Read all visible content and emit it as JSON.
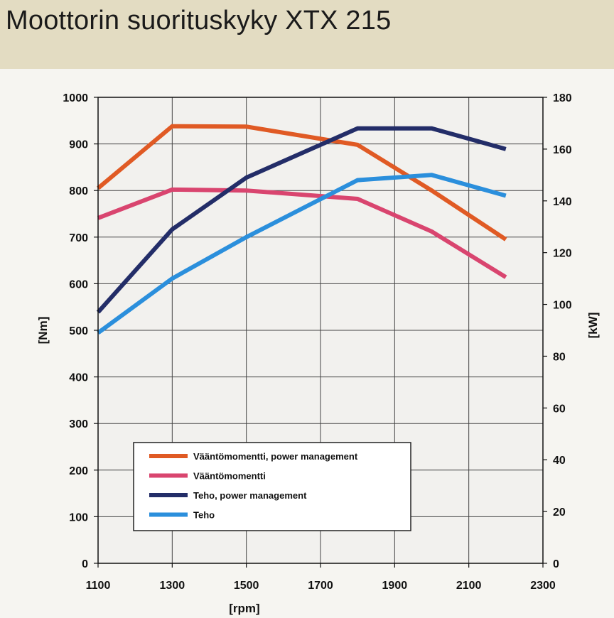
{
  "title": "Moottorin suorituskyky XTX 215",
  "chart_data": {
    "type": "line",
    "title": "Moottorin suorituskyky XTX 215",
    "xlabel": "[rpm]",
    "ylabel": "[Nm]",
    "y2label": "[kW]",
    "xlim": [
      1100,
      2300
    ],
    "ylim": [
      0,
      1000
    ],
    "y2lim": [
      0,
      180
    ],
    "x_ticks": [
      "1100",
      "1300",
      "1500",
      "1700",
      "1900",
      "2100",
      "2300"
    ],
    "y_ticks": [
      "0",
      "100",
      "200",
      "300",
      "400",
      "500",
      "600",
      "700",
      "800",
      "900",
      "1000"
    ],
    "y2_ticks": [
      "0",
      "20",
      "40",
      "60",
      "80",
      "100",
      "120",
      "140",
      "160",
      "180"
    ],
    "grid": true,
    "legend_position": "bottom-left",
    "series": [
      {
        "name": "Vääntömomentti, power management",
        "axis": "left",
        "color": "#e05a24",
        "x": [
          1100,
          1300,
          1500,
          1800,
          2000,
          2200
        ],
        "y": [
          805,
          938,
          937,
          898,
          800,
          695
        ]
      },
      {
        "name": "Vääntömomentti",
        "axis": "left",
        "color": "#d9456f",
        "x": [
          1100,
          1300,
          1500,
          1800,
          2000,
          2200
        ],
        "y": [
          741,
          802,
          800,
          782,
          712,
          614
        ]
      },
      {
        "name": "Teho, power management",
        "axis": "right",
        "color": "#232d68",
        "x": [
          1100,
          1300,
          1500,
          1800,
          2000,
          2200
        ],
        "y": [
          97,
          129,
          149,
          168,
          168,
          160
        ]
      },
      {
        "name": "Teho",
        "axis": "right",
        "color": "#2b8fdc",
        "x": [
          1100,
          1300,
          1500,
          1800,
          2000,
          2200
        ],
        "y": [
          89,
          110,
          126,
          148,
          150,
          142
        ]
      }
    ]
  }
}
